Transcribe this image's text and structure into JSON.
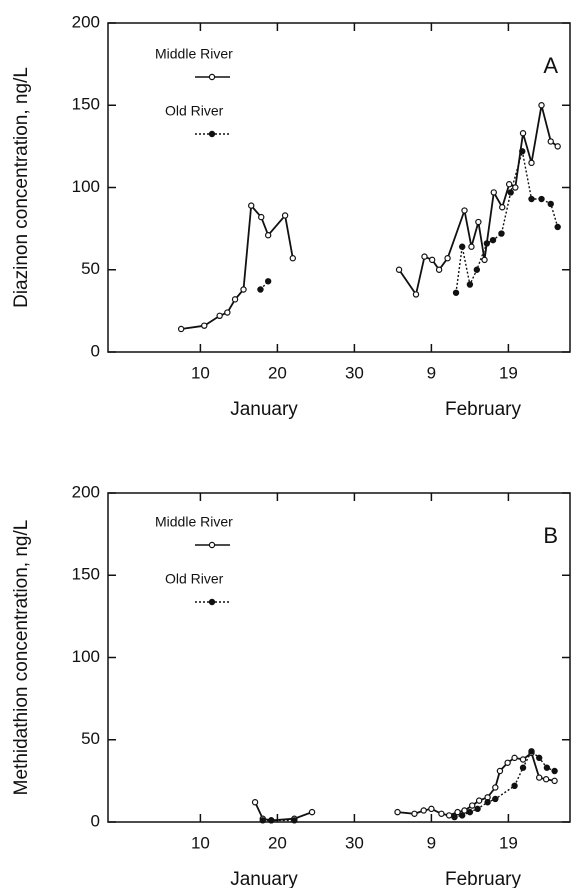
{
  "chart_data": [
    {
      "type": "line",
      "panel_label": "A",
      "ylabel": "Diazinon concentration, ng/L",
      "xlim": [
        -2,
        58
      ],
      "ylim": [
        0,
        200
      ],
      "xticks": [
        10,
        20,
        30,
        {
          "value": 40,
          "label": "9"
        },
        {
          "value": 50,
          "label": "19"
        }
      ],
      "yticks": [
        0,
        50,
        100,
        150,
        200
      ],
      "x_group_labels": [
        "January",
        "February"
      ],
      "series": [
        {
          "name": "Middle River",
          "color": "#111111",
          "style": "solid",
          "marker": "open",
          "x": [
            7.5,
            10.5,
            12.5,
            13.5,
            14.5,
            15.6,
            16.6,
            17.9,
            18.8,
            21,
            22,
            null,
            35.8,
            38,
            39.1,
            40.1,
            41,
            42.1,
            44.3,
            45.2,
            46.1,
            46.9,
            48.1,
            49.2,
            50.1,
            50.9,
            51.9,
            53,
            54.3,
            55.5,
            56.4
          ],
          "values": [
            14,
            16,
            22,
            24,
            32,
            38,
            89,
            82,
            71,
            83,
            57,
            null,
            50,
            35,
            58,
            56,
            50,
            57,
            86,
            64,
            79,
            56,
            97,
            88,
            102,
            100,
            133,
            115,
            150,
            128,
            125
          ]
        },
        {
          "name": "Old River",
          "color": "#111111",
          "style": "dotted",
          "marker": "filled",
          "x": [
            17.8,
            18.8,
            null,
            43.2,
            44,
            45,
            45.9,
            47.2,
            48,
            49.1,
            50.3,
            51.8,
            53,
            54.3,
            55.5,
            56.4
          ],
          "values": [
            38,
            43,
            null,
            36,
            64,
            41,
            50,
            66,
            68,
            72,
            97,
            122,
            93,
            93,
            90,
            76
          ]
        }
      ]
    },
    {
      "type": "line",
      "panel_label": "B",
      "ylabel": "Methidathion concentration, ng/L",
      "xlim": [
        -2,
        58
      ],
      "ylim": [
        0,
        200
      ],
      "xticks": [
        10,
        20,
        30,
        {
          "value": 40,
          "label": "9"
        },
        {
          "value": 50,
          "label": "19"
        }
      ],
      "yticks": [
        0,
        50,
        100,
        150,
        200
      ],
      "x_group_labels": [
        "January",
        "February"
      ],
      "series": [
        {
          "name": "Middle River",
          "color": "#111111",
          "style": "solid",
          "marker": "open",
          "x": [
            17.1,
            18.1,
            19.2,
            22.2,
            24.5,
            null,
            35.6,
            37.8,
            39,
            40,
            41.3,
            42.3,
            43.4,
            44.3,
            45.3,
            46.2,
            47.3,
            48.3,
            48.9,
            49.9,
            50.8,
            51.9,
            53,
            54,
            54.9,
            56
          ],
          "values": [
            12,
            2,
            1,
            2,
            6,
            null,
            6,
            5,
            7,
            8,
            5,
            4,
            6,
            7,
            10,
            13,
            15,
            21,
            31,
            36,
            39,
            38,
            42,
            27,
            26,
            25
          ]
        },
        {
          "name": "Old River",
          "color": "#111111",
          "style": "dotted",
          "marker": "filled",
          "x": [
            18.1,
            19.2,
            22.2,
            null,
            43,
            44,
            45,
            46,
            47.3,
            48.3,
            50.8,
            51.9,
            53,
            54,
            55,
            56
          ],
          "values": [
            1,
            1,
            1,
            null,
            3,
            4,
            6,
            8,
            12,
            14,
            22,
            33,
            43,
            39,
            33,
            31
          ]
        }
      ]
    }
  ]
}
